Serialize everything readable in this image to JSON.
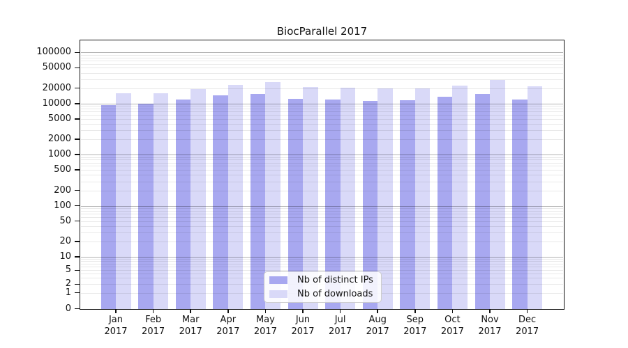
{
  "title": "BiocParallel 2017",
  "legend": {
    "entries": [
      {
        "label": "Nb of distinct IPs",
        "color": "#a8a8f0"
      },
      {
        "label": "Nb of downloads",
        "color": "#d9d9f8"
      }
    ]
  },
  "axes": {
    "y_tick_labels": [
      "0",
      "1",
      "2",
      "5",
      "10",
      "20",
      "50",
      "100",
      "200",
      "500",
      "1000",
      "2000",
      "5000",
      "10000",
      "20000",
      "50000",
      "100000"
    ],
    "xlabel": "",
    "ylabel": ""
  },
  "chart_data": {
    "type": "bar",
    "title": "BiocParallel 2017",
    "categories": [
      "Jan 2017",
      "Feb 2017",
      "Mar 2017",
      "Apr 2017",
      "May 2017",
      "Jun 2017",
      "Jul 2017",
      "Aug 2017",
      "Sep 2017",
      "Oct 2017",
      "Nov 2017",
      "Dec 2017"
    ],
    "series": [
      {
        "name": "Nb of distinct IPs",
        "color": "#a8a8f0",
        "values": [
          9400,
          9900,
          12000,
          14300,
          15400,
          12500,
          12100,
          11300,
          11600,
          13500,
          15400,
          12100
        ]
      },
      {
        "name": "Nb of downloads",
        "color": "#d9d9f8",
        "values": [
          15800,
          15900,
          19200,
          23400,
          26000,
          21000,
          20400,
          19600,
          19800,
          22600,
          28900,
          21500
        ]
      }
    ],
    "yscale": "symlog",
    "y_ticks": [
      0,
      1,
      2,
      5,
      10,
      20,
      50,
      100,
      200,
      500,
      1000,
      2000,
      5000,
      10000,
      20000,
      50000,
      100000
    ],
    "ylim": [
      0,
      172000
    ],
    "grid": "horizontal, log minor + major decade lines",
    "legend_position": "lower center inside plot",
    "xlabel": "",
    "ylabel": ""
  }
}
